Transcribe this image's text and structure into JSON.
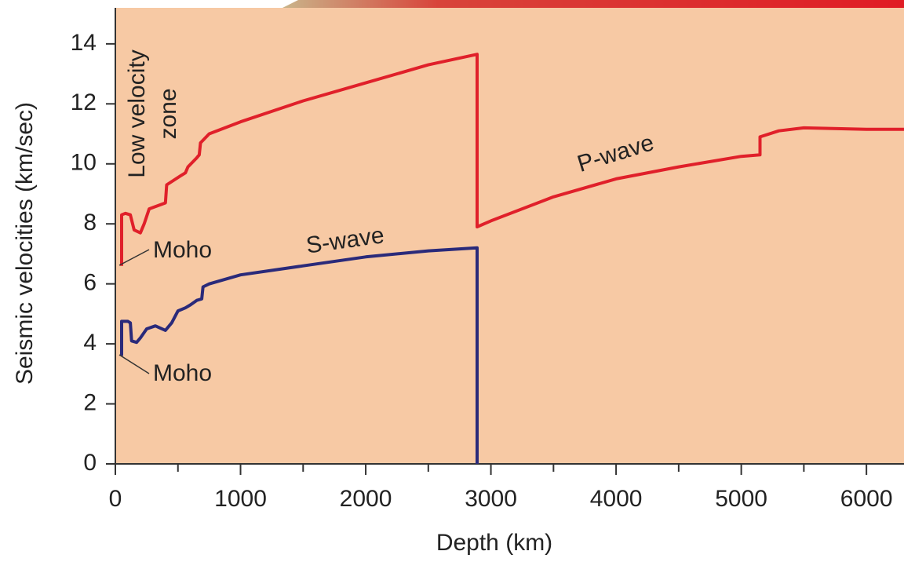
{
  "chart_data": {
    "type": "line",
    "xlabel": "Depth (km)",
    "ylabel": "Seismic velocities (km/sec)",
    "xlim": [
      0,
      6300
    ],
    "ylim": [
      0,
      15.2
    ],
    "xticks": [
      0,
      1000,
      2000,
      3000,
      4000,
      5000,
      6000
    ],
    "xminor_ticks": [
      500,
      1500,
      2500,
      3500,
      4500,
      5500
    ],
    "yticks": [
      0,
      2,
      4,
      6,
      8,
      10,
      12,
      14
    ],
    "series": [
      {
        "name": "P-wave",
        "color": "#e0202a",
        "x": [
          50,
          50,
          80,
          120,
          150,
          200,
          230,
          270,
          400,
          410,
          520,
          560,
          580,
          650,
          670,
          680,
          750,
          1000,
          1500,
          2000,
          2500,
          2890,
          2890,
          3000,
          3500,
          4000,
          4500,
          5000,
          5150,
          5150,
          5300,
          5500,
          6000,
          6300
        ],
        "values": [
          6.6,
          8.3,
          8.35,
          8.3,
          7.8,
          7.7,
          8.0,
          8.5,
          8.7,
          9.3,
          9.6,
          9.7,
          9.9,
          10.2,
          10.3,
          10.7,
          11.0,
          11.4,
          12.1,
          12.7,
          13.3,
          13.65,
          7.9,
          8.1,
          8.9,
          9.5,
          9.9,
          10.25,
          10.3,
          10.9,
          11.1,
          11.2,
          11.15,
          11.15
        ]
      },
      {
        "name": "S-wave",
        "color": "#2a2a7a",
        "x": [
          50,
          50,
          100,
          120,
          130,
          170,
          200,
          250,
          320,
          400,
          450,
          500,
          560,
          600,
          650,
          690,
          700,
          750,
          1000,
          1500,
          2000,
          2500,
          2890,
          2890
        ],
        "values": [
          3.6,
          4.75,
          4.75,
          4.7,
          4.1,
          4.05,
          4.2,
          4.5,
          4.6,
          4.45,
          4.7,
          5.1,
          5.2,
          5.3,
          5.45,
          5.5,
          5.9,
          6.0,
          6.3,
          6.6,
          6.9,
          7.1,
          7.2,
          0
        ]
      }
    ],
    "annotations": [
      "Moho",
      "Moho",
      "Low velocity",
      "zone"
    ]
  }
}
